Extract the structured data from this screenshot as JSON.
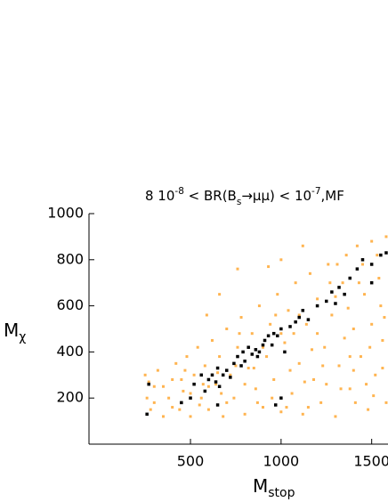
{
  "chart_data": {
    "type": "scatter",
    "title": [
      {
        "text": "8 10"
      },
      {
        "text": "-8",
        "sup": true
      },
      {
        "text": " < BR(B"
      },
      {
        "text": "s",
        "sub": true
      },
      {
        "text": "→μμ) < 10"
      },
      {
        "text": "-7",
        "sup": true
      },
      {
        "text": ",MF"
      }
    ],
    "xlabel": [
      {
        "text": "M"
      },
      {
        "text": "stop",
        "sub": true
      }
    ],
    "ylabel": [
      {
        "text": "M"
      },
      {
        "text": "χ",
        "sub": true
      }
    ],
    "xlim": [
      -60,
      1590
    ],
    "ylim": [
      0,
      1000
    ],
    "xticks": [
      500,
      1000,
      1500
    ],
    "yticks": [
      200,
      400,
      600,
      800,
      1000
    ],
    "series": [
      {
        "color": "#ffb450",
        "x": [
          250,
          260,
          280,
          300,
          320,
          350,
          380,
          400,
          420,
          440,
          460,
          480,
          500,
          520,
          540,
          560,
          580,
          600,
          620,
          640,
          660,
          680,
          700,
          720,
          740,
          760,
          780,
          800,
          820,
          840,
          860,
          880,
          900,
          920,
          940,
          960,
          980,
          1000,
          1020,
          1040,
          1060,
          1080,
          1100,
          1120,
          1140,
          1160,
          1180,
          1200,
          1220,
          1240,
          1260,
          1280,
          1300,
          1320,
          1340,
          1360,
          1380,
          1400,
          1420,
          1440,
          1460,
          1480,
          1500,
          1520,
          1540,
          1560,
          1580,
          1580,
          1550,
          1500,
          1450,
          1400,
          1350,
          1300,
          1250,
          1200,
          1150,
          1100,
          1050,
          1000,
          950,
          900,
          850,
          800,
          750,
          700,
          650,
          600,
          550,
          500,
          450,
          400,
          350,
          300,
          270,
          760,
          660,
          590,
          930,
          1000,
          1120,
          1430,
          1490,
          1530,
          1570,
          1370,
          1270,
          1170,
          1070,
          970,
          870,
          770,
          670,
          570,
          470,
          1330,
          1230,
          1130,
          1030,
          1310,
          1410,
          1510,
          1560,
          1470,
          1380
        ],
        "y": [
          300,
          200,
          150,
          250,
          320,
          120,
          200,
          280,
          350,
          150,
          230,
          380,
          120,
          300,
          420,
          200,
          340,
          150,
          450,
          260,
          380,
          120,
          500,
          300,
          200,
          420,
          550,
          130,
          330,
          480,
          240,
          600,
          160,
          380,
          520,
          280,
          650,
          140,
          440,
          580,
          220,
          700,
          350,
          130,
          520,
          740,
          280,
          630,
          180,
          420,
          780,
          560,
          120,
          340,
          700,
          820,
          240,
          500,
          860,
          380,
          650,
          150,
          880,
          300,
          720,
          450,
          900,
          180,
          600,
          520,
          780,
          320,
          460,
          640,
          260,
          480,
          160,
          560,
          320,
          480,
          200,
          420,
          330,
          260,
          340,
          180,
          310,
          250,
          170,
          220,
          280,
          160,
          250,
          180,
          270,
          760,
          650,
          560,
          770,
          800,
          860,
          700,
          420,
          820,
          550,
          590,
          700,
          410,
          480,
          560,
          180,
          480,
          220,
          260,
          320,
          240,
          340,
          270,
          160,
          780,
          180,
          210,
          330,
          260,
          380
        ]
      },
      {
        "color": "#000000",
        "x": [
          260,
          270,
          450,
          500,
          520,
          560,
          580,
          600,
          620,
          640,
          650,
          660,
          680,
          700,
          720,
          740,
          760,
          780,
          790,
          800,
          820,
          840,
          860,
          870,
          880,
          900,
          910,
          930,
          950,
          960,
          980,
          1000,
          1020,
          1050,
          1080,
          1100,
          1120,
          1150,
          1200,
          1250,
          1280,
          1300,
          1320,
          1350,
          1380,
          1420,
          1450,
          1500,
          1550,
          1580,
          1000,
          970,
          650,
          1500
        ],
        "y": [
          130,
          260,
          180,
          200,
          260,
          300,
          230,
          280,
          300,
          270,
          330,
          250,
          300,
          320,
          290,
          350,
          380,
          340,
          400,
          360,
          420,
          390,
          410,
          380,
          400,
          430,
          450,
          470,
          430,
          480,
          470,
          500,
          400,
          510,
          530,
          550,
          580,
          540,
          600,
          620,
          660,
          610,
          680,
          650,
          720,
          760,
          800,
          780,
          820,
          830,
          200,
          170,
          170,
          700
        ]
      }
    ]
  }
}
